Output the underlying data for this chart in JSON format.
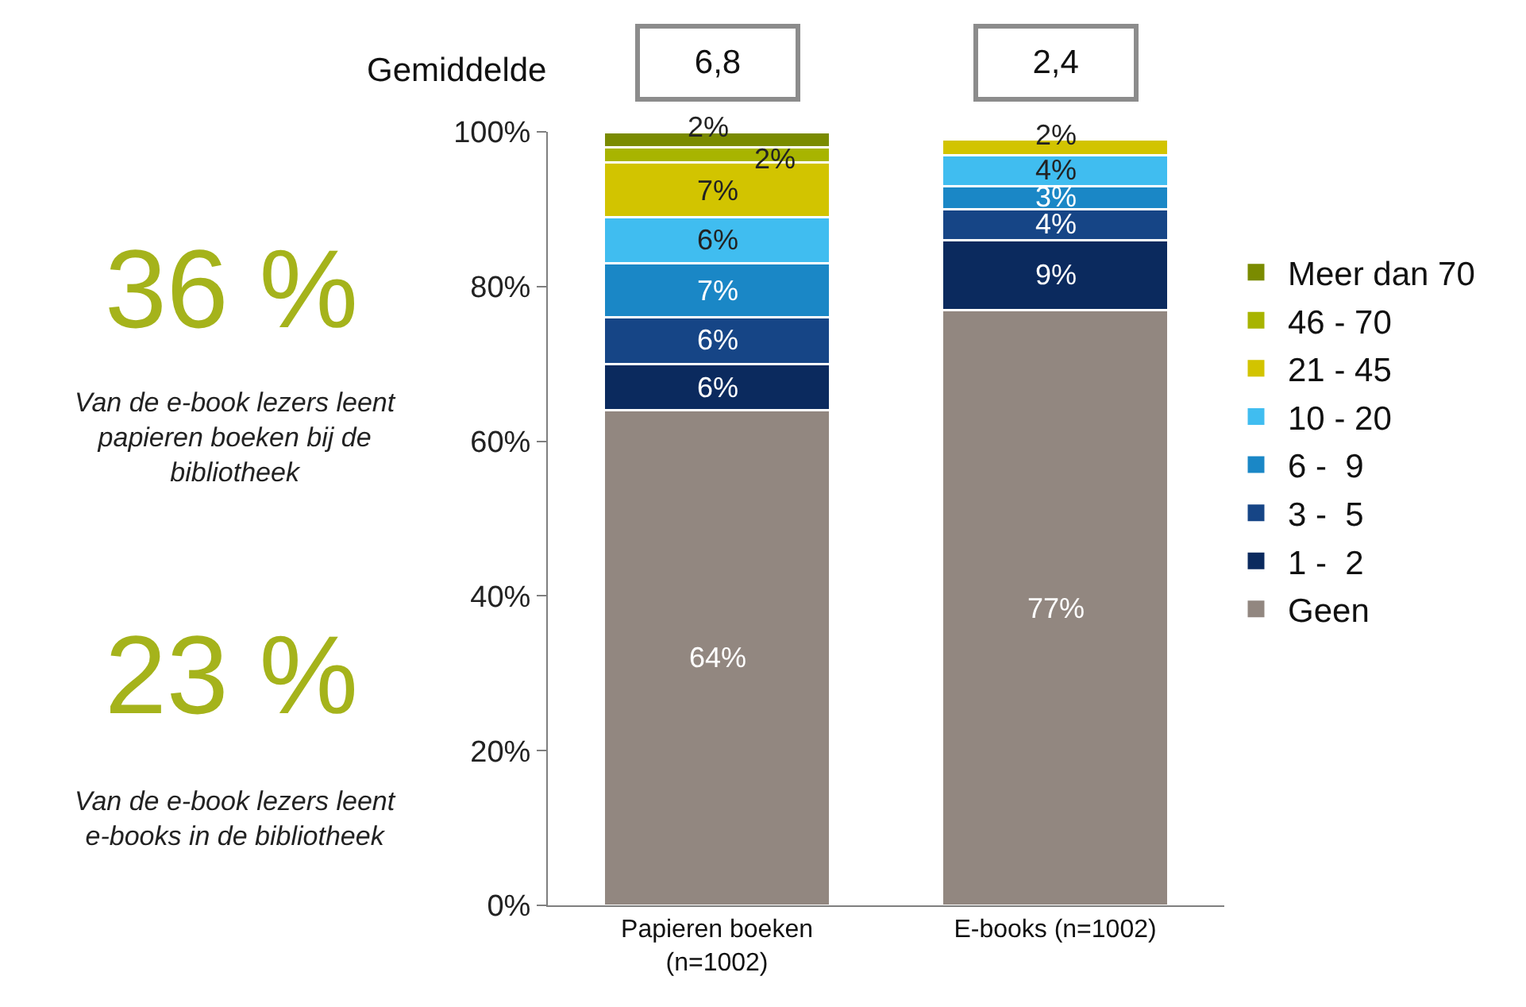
{
  "chart_data": {
    "type": "bar",
    "stacked": true,
    "categories": [
      "Papieren boeken (n=1002)",
      "E-books (n=1002)"
    ],
    "series": [
      {
        "name": "Geen",
        "color": "#928780",
        "values": [
          64,
          77
        ],
        "value_labels": [
          "64%",
          "77%"
        ]
      },
      {
        "name": "1 -  2",
        "color": "#0b2a5e",
        "values": [
          6,
          9
        ],
        "value_labels": [
          "6%",
          "9%"
        ]
      },
      {
        "name": "3 -  5",
        "color": "#164586",
        "values": [
          6,
          4
        ],
        "value_labels": [
          "6%",
          "4%"
        ]
      },
      {
        "name": "6 -  9",
        "color": "#1a87c6",
        "values": [
          7,
          3
        ],
        "value_labels": [
          "7%",
          "3%"
        ]
      },
      {
        "name": "10 - 20",
        "color": "#40bdf0",
        "values": [
          6,
          4
        ],
        "value_labels": [
          "6%",
          "4%"
        ]
      },
      {
        "name": "21 - 45",
        "color": "#d2c400",
        "values": [
          7,
          2
        ],
        "value_labels": [
          "7%",
          "2%"
        ]
      },
      {
        "name": "46 - 70",
        "color": "#a8b400",
        "values": [
          2,
          null
        ],
        "value_labels": [
          "2%",
          null
        ]
      },
      {
        "name": "Meer dan 70",
        "color": "#7a8b00",
        "values": [
          2,
          null
        ],
        "value_labels": [
          "2%",
          null
        ]
      }
    ],
    "ylim": [
      0,
      100
    ],
    "yticks": [
      {
        "value": 0,
        "label": "0%"
      },
      {
        "value": 20,
        "label": "20%"
      },
      {
        "value": 40,
        "label": "40%"
      },
      {
        "value": 60,
        "label": "60%"
      },
      {
        "value": 80,
        "label": "80%"
      },
      {
        "value": 100,
        "label": "100%"
      }
    ],
    "grid": false,
    "legend": "right",
    "annotations": [
      "36 %",
      "Van de e-book lezers leent papieren boeken bij de bibliotheek",
      "23 %",
      "Van de e-book lezers leent e-books in de bibliotheek",
      "Gemiddelde",
      "6,8",
      "2,4"
    ]
  }
}
